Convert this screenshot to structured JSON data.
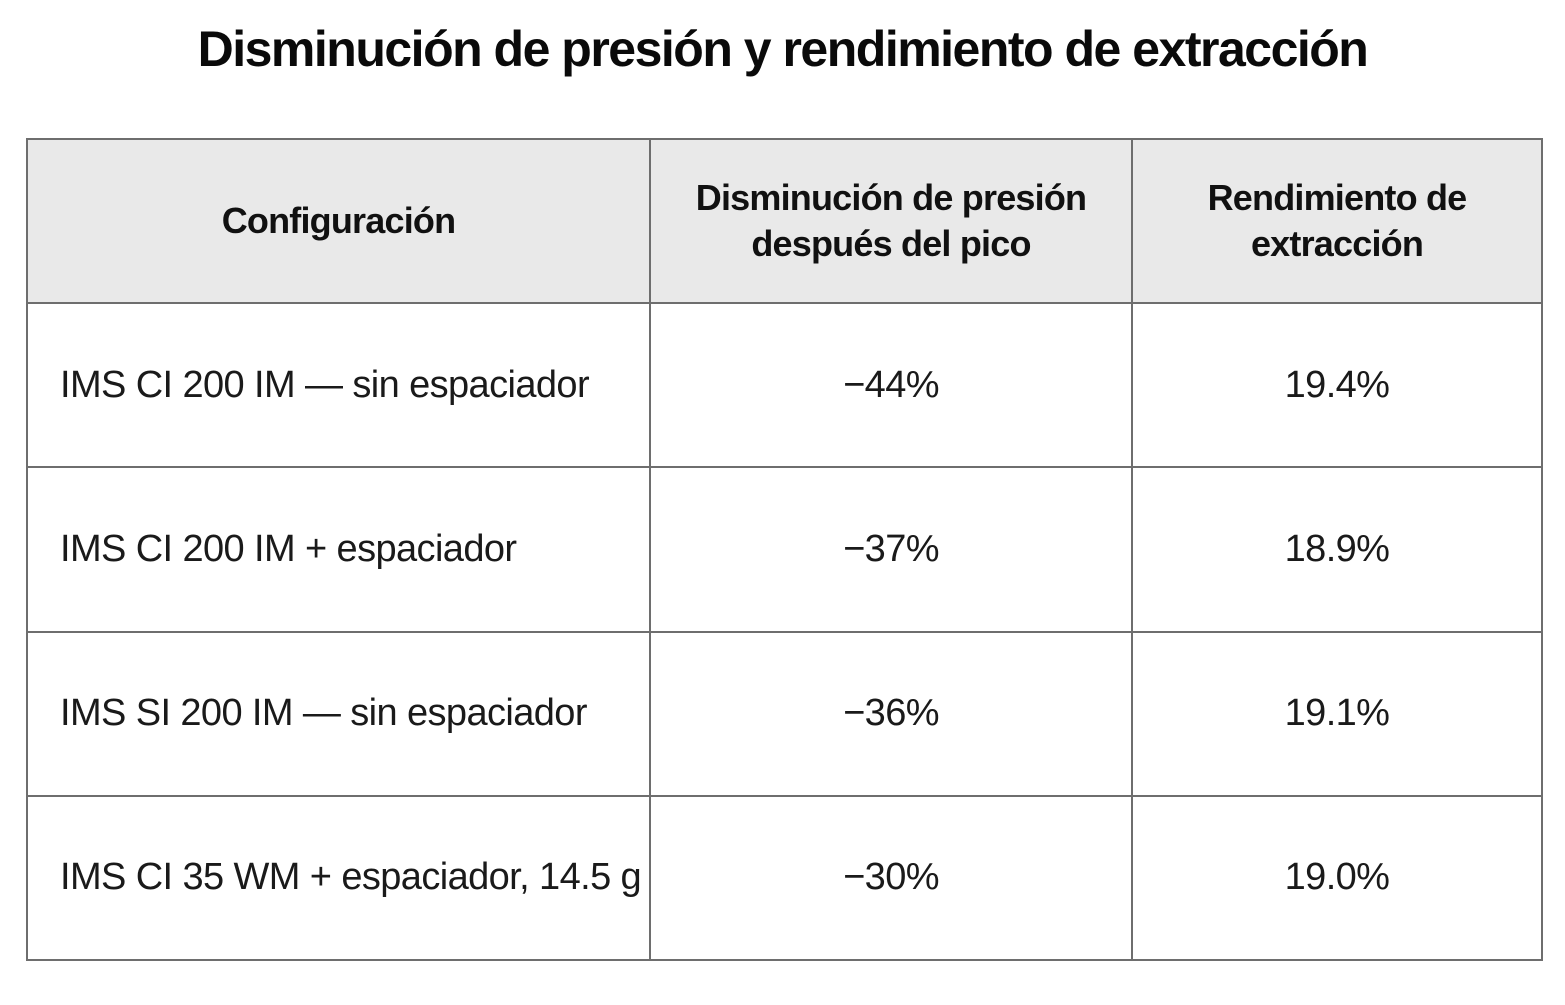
{
  "chart_data": {
    "type": "table",
    "title": "Disminución de presión y rendimiento de extracción",
    "columns": [
      "Configuración",
      "Disminución de presión después del pico",
      "Rendimiento de extracción"
    ],
    "rows": [
      {
        "configuracion": "IMS CI 200 IM — sin espaciador",
        "disminucion": "−44%",
        "rendimiento": "19.4%"
      },
      {
        "configuracion": "IMS CI 200 IM + espaciador",
        "disminucion": "−37%",
        "rendimiento": "18.9%"
      },
      {
        "configuracion": "IMS SI 200 IM — sin espaciador",
        "disminucion": "−36%",
        "rendimiento": "19.1%"
      },
      {
        "configuracion": "IMS CI 35 WM + espaciador, 14.5 g",
        "disminucion": "−30%",
        "rendimiento": "19.0%"
      }
    ]
  }
}
